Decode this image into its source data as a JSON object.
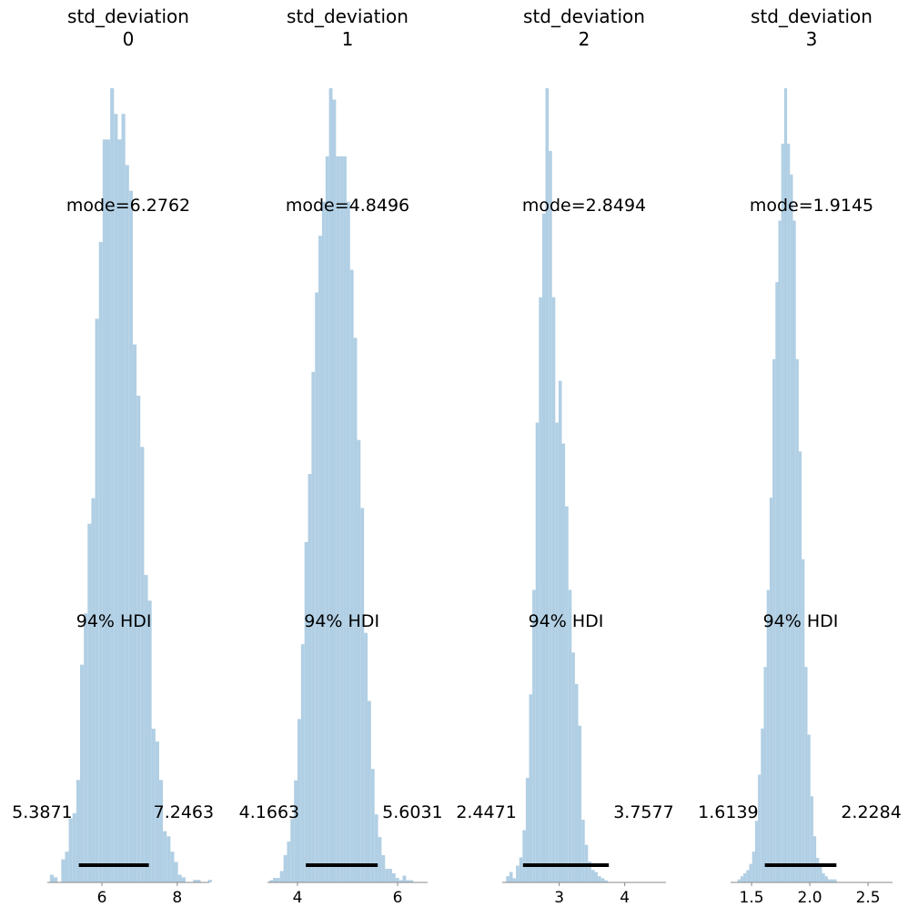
{
  "chart_data": [
    {
      "type": "histogram",
      "title_line1": "std_deviation",
      "title_line2": "0",
      "mode_label": "mode=6.2762",
      "hdi_label": "94% HDI",
      "hdi_low": 5.3871,
      "hdi_high": 7.2463,
      "hdi_low_label": "5.3871",
      "hdi_high_label": "7.2463",
      "xlim": [
        4.55,
        8.85
      ],
      "ticks": [
        6,
        8
      ],
      "tick_labels": [
        "6",
        "8"
      ],
      "bin_start": 4.62,
      "bin_width": 0.1,
      "counts": [
        3,
        2,
        0,
        9,
        12,
        25,
        27,
        40,
        85,
        105,
        140,
        150,
        220,
        250,
        290,
        290,
        310,
        300,
        290,
        300,
        280,
        270,
        210,
        190,
        170,
        120,
        110,
        60,
        55,
        40,
        20,
        18,
        12,
        8,
        3,
        2,
        0,
        0,
        1,
        1,
        0,
        0,
        1,
        0
      ]
    },
    {
      "type": "histogram",
      "title_line1": "std_deviation",
      "title_line2": "1",
      "mode_label": "mode=4.8496",
      "hdi_label": "94% HDI",
      "hdi_low": 4.1663,
      "hdi_high": 5.6031,
      "hdi_low_label": "4.1663",
      "hdi_high_label": "5.6031",
      "xlim": [
        3.4,
        6.6
      ],
      "ticks": [
        4,
        6
      ],
      "tick_labels": [
        "4",
        "6"
      ],
      "bin_start": 3.44,
      "bin_width": 0.07,
      "counts": [
        1,
        2,
        2,
        5,
        12,
        18,
        28,
        45,
        72,
        105,
        150,
        180,
        225,
        260,
        285,
        300,
        320,
        350,
        345,
        320,
        320,
        320,
        300,
        270,
        240,
        195,
        165,
        110,
        80,
        50,
        30,
        20,
        12,
        6,
        6,
        4,
        2,
        1,
        3,
        1,
        1
      ]
    },
    {
      "type": "histogram",
      "title_line1": "std_deviation",
      "title_line2": "2",
      "mode_label": "mode=2.8494",
      "hdi_label": "94% HDI",
      "hdi_low": 2.4471,
      "hdi_high": 3.7577,
      "hdi_low_label": "2.4471",
      "hdi_high_label": "3.7577",
      "xlim": [
        2.13,
        4.63
      ],
      "ticks": [
        3,
        4
      ],
      "tick_labels": [
        "3",
        "4"
      ],
      "bin_start": 2.19,
      "bin_width": 0.05,
      "counts": [
        3,
        5,
        2,
        8,
        12,
        25,
        50,
        90,
        140,
        220,
        280,
        320,
        380,
        350,
        280,
        220,
        240,
        210,
        180,
        140,
        110,
        95,
        75,
        30,
        18,
        10,
        6,
        5,
        3,
        2,
        1
      ]
    },
    {
      "type": "histogram",
      "title_line1": "std_deviation",
      "title_line2": "3",
      "mode_label": "mode=1.9145",
      "hdi_label": "94% HDI",
      "hdi_low": 1.6139,
      "hdi_high": 2.2284,
      "hdi_low_label": "1.6139",
      "hdi_high_label": "2.2284",
      "xlim": [
        1.32,
        2.71
      ],
      "ticks": [
        1.5,
        2.0,
        2.5
      ],
      "tick_labels": [
        "1.5",
        "2.0",
        "2.5"
      ],
      "bin_start": 1.38,
      "bin_width": 0.025,
      "counts": [
        1,
        2,
        3,
        4,
        6,
        10,
        20,
        35,
        50,
        70,
        95,
        125,
        170,
        195,
        215,
        240,
        258,
        240,
        230,
        215,
        170,
        140,
        105,
        70,
        48,
        28,
        15,
        8,
        5,
        3,
        2,
        1,
        1,
        1
      ]
    }
  ]
}
